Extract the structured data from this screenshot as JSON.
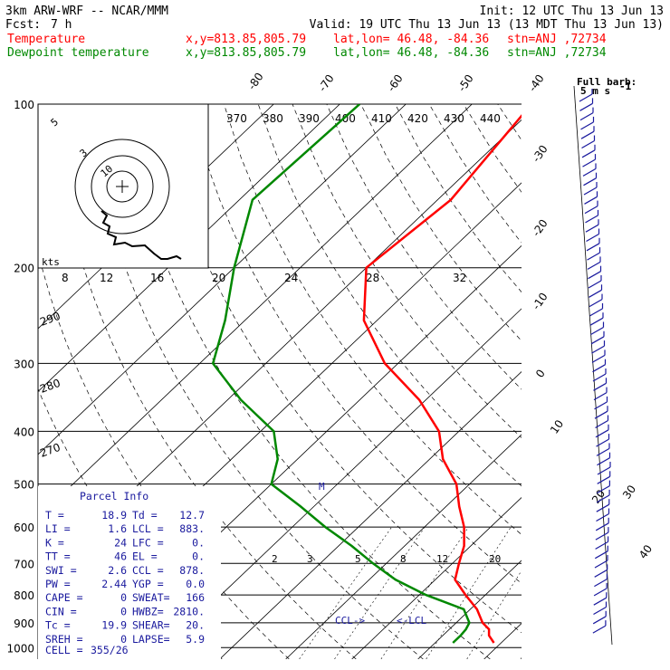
{
  "header": {
    "model": "3km ARW-WRF -- NCAR/MMM",
    "init": "Init: 12 UTC Thu 13 Jun 13",
    "fcst_label": "Fcst:",
    "fcst_value": "7 h",
    "valid": "Valid: 19 UTC Thu 13 Jun 13 (13 MDT Thu 13 Jun 13)",
    "temp_label": "Temperature",
    "dew_label": "Dewpoint temperature",
    "xy": "x,y=813.85,805.79",
    "latlon": "lat,lon= 46.48, -84.36",
    "stn": "stn=ANJ ,72734"
  },
  "colors": {
    "temperature": "#ff0000",
    "dewpoint": "#008800",
    "parcel_text": "#1a1a9e",
    "grid": "#000000"
  },
  "full_barb_label": "Full barb:",
  "full_barb_value": "5 m s",
  "full_barb_sup": "-1",
  "chart_data": {
    "type": "line",
    "y_axis": "pressure (hPa)",
    "pressure_ticks": [
      100,
      200,
      300,
      400,
      500,
      600,
      700,
      800,
      900,
      1000
    ],
    "isotherm_labels": [
      "-80",
      "-70",
      "-60",
      "-50",
      "-40",
      "-30",
      "-20",
      "-10",
      "0",
      "10",
      "20",
      "30",
      "40"
    ],
    "theta_labels": [
      "370",
      "380",
      "390",
      "400",
      "410",
      "420",
      "430",
      "440"
    ],
    "hodo_speed_labels": [
      "8",
      "12",
      "16",
      "20",
      "24",
      "28",
      "32"
    ],
    "hodo_ring_labels": [
      "5",
      "3",
      "10"
    ],
    "hodo_units": "kts",
    "dry_adiabat_labels": [
      "290",
      "280",
      "270"
    ],
    "mixing_ratio_labels": [
      "2",
      "3",
      "5",
      "8",
      "12",
      "20"
    ],
    "series": [
      {
        "name": "Temperature",
        "points": [
          [
            100,
            -61
          ],
          [
            150,
            -58
          ],
          [
            200,
            -60
          ],
          [
            250,
            -52
          ],
          [
            300,
            -42
          ],
          [
            350,
            -31
          ],
          [
            400,
            -23
          ],
          [
            450,
            -18
          ],
          [
            500,
            -12
          ],
          [
            550,
            -8
          ],
          [
            600,
            -4
          ],
          [
            650,
            -1
          ],
          [
            700,
            1
          ],
          [
            750,
            3
          ],
          [
            800,
            7
          ],
          [
            850,
            11
          ],
          [
            900,
            14
          ],
          [
            925,
            16
          ],
          [
            950,
            17
          ],
          [
            980,
            18.9
          ]
        ]
      },
      {
        "name": "Dewpoint temperature",
        "points": [
          [
            100,
            -87
          ],
          [
            150,
            -88
          ],
          [
            200,
            -80
          ],
          [
            250,
            -73
          ],
          [
            300,
            -68
          ],
          [
            350,
            -58
          ],
          [
            400,
            -48
          ],
          [
            450,
            -43
          ],
          [
            500,
            -40
          ],
          [
            550,
            -32
          ],
          [
            600,
            -25
          ],
          [
            650,
            -18
          ],
          [
            700,
            -12
          ],
          [
            750,
            -6
          ],
          [
            800,
            1
          ],
          [
            850,
            9
          ],
          [
            900,
            12
          ],
          [
            925,
            12.5
          ],
          [
            950,
            12.7
          ],
          [
            980,
            12.7
          ]
        ]
      }
    ],
    "markers": {
      "ccl": "CCL->",
      "lcl": "<-LCL",
      "m": "M"
    },
    "parcel_info": {
      "title": "Parcel Info",
      "rows": [
        [
          "T  =",
          "18.9",
          "Td =",
          "12.7"
        ],
        [
          "LI =",
          "1.6",
          "LCL =",
          "883."
        ],
        [
          "K  =",
          "24",
          "LFC =",
          "0."
        ],
        [
          "TT =",
          "46",
          "EL =",
          "0."
        ],
        [
          "SWI =",
          "2.6",
          "CCL =",
          "878."
        ],
        [
          "PW =",
          "2.44",
          "YGP =",
          "0.0"
        ],
        [
          "CAPE =",
          "0",
          "SWEAT=",
          "166"
        ],
        [
          "CIN =",
          "0",
          "HWBZ=",
          "2810."
        ],
        [
          "Tc =",
          "19.9",
          "SHEAR=",
          "20."
        ],
        [
          "SREH =",
          "0",
          "LAPSE=",
          "5.9"
        ]
      ],
      "cell_label": "CELL =",
      "cell_value": "355/26"
    }
  }
}
